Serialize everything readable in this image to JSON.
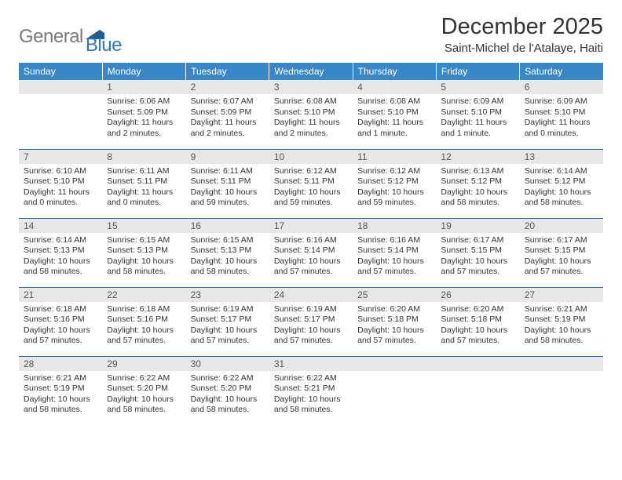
{
  "brand": {
    "part1": "General",
    "part2": "Blue"
  },
  "title": "December 2025",
  "location": "Saint-Michel de l'Atalaye, Haiti",
  "colors": {
    "header_bg": "#3a87c7",
    "header_text": "#ffffff",
    "daynum_bg": "#e7e7e7",
    "border": "#2f6fa6",
    "logo_gray": "#7a7a7a",
    "logo_blue": "#2f78b5"
  },
  "weekdays": [
    "Sunday",
    "Monday",
    "Tuesday",
    "Wednesday",
    "Thursday",
    "Friday",
    "Saturday"
  ],
  "weeks": [
    [
      null,
      {
        "n": "1",
        "sr": "Sunrise: 6:06 AM",
        "ss": "Sunset: 5:09 PM",
        "dl": "Daylight: 11 hours and 2 minutes."
      },
      {
        "n": "2",
        "sr": "Sunrise: 6:07 AM",
        "ss": "Sunset: 5:09 PM",
        "dl": "Daylight: 11 hours and 2 minutes."
      },
      {
        "n": "3",
        "sr": "Sunrise: 6:08 AM",
        "ss": "Sunset: 5:10 PM",
        "dl": "Daylight: 11 hours and 2 minutes."
      },
      {
        "n": "4",
        "sr": "Sunrise: 6:08 AM",
        "ss": "Sunset: 5:10 PM",
        "dl": "Daylight: 11 hours and 1 minute."
      },
      {
        "n": "5",
        "sr": "Sunrise: 6:09 AM",
        "ss": "Sunset: 5:10 PM",
        "dl": "Daylight: 11 hours and 1 minute."
      },
      {
        "n": "6",
        "sr": "Sunrise: 6:09 AM",
        "ss": "Sunset: 5:10 PM",
        "dl": "Daylight: 11 hours and 0 minutes."
      }
    ],
    [
      {
        "n": "7",
        "sr": "Sunrise: 6:10 AM",
        "ss": "Sunset: 5:10 PM",
        "dl": "Daylight: 11 hours and 0 minutes."
      },
      {
        "n": "8",
        "sr": "Sunrise: 6:11 AM",
        "ss": "Sunset: 5:11 PM",
        "dl": "Daylight: 11 hours and 0 minutes."
      },
      {
        "n": "9",
        "sr": "Sunrise: 6:11 AM",
        "ss": "Sunset: 5:11 PM",
        "dl": "Daylight: 10 hours and 59 minutes."
      },
      {
        "n": "10",
        "sr": "Sunrise: 6:12 AM",
        "ss": "Sunset: 5:11 PM",
        "dl": "Daylight: 10 hours and 59 minutes."
      },
      {
        "n": "11",
        "sr": "Sunrise: 6:12 AM",
        "ss": "Sunset: 5:12 PM",
        "dl": "Daylight: 10 hours and 59 minutes."
      },
      {
        "n": "12",
        "sr": "Sunrise: 6:13 AM",
        "ss": "Sunset: 5:12 PM",
        "dl": "Daylight: 10 hours and 58 minutes."
      },
      {
        "n": "13",
        "sr": "Sunrise: 6:14 AM",
        "ss": "Sunset: 5:12 PM",
        "dl": "Daylight: 10 hours and 58 minutes."
      }
    ],
    [
      {
        "n": "14",
        "sr": "Sunrise: 6:14 AM",
        "ss": "Sunset: 5:13 PM",
        "dl": "Daylight: 10 hours and 58 minutes."
      },
      {
        "n": "15",
        "sr": "Sunrise: 6:15 AM",
        "ss": "Sunset: 5:13 PM",
        "dl": "Daylight: 10 hours and 58 minutes."
      },
      {
        "n": "16",
        "sr": "Sunrise: 6:15 AM",
        "ss": "Sunset: 5:13 PM",
        "dl": "Daylight: 10 hours and 58 minutes."
      },
      {
        "n": "17",
        "sr": "Sunrise: 6:16 AM",
        "ss": "Sunset: 5:14 PM",
        "dl": "Daylight: 10 hours and 57 minutes."
      },
      {
        "n": "18",
        "sr": "Sunrise: 6:16 AM",
        "ss": "Sunset: 5:14 PM",
        "dl": "Daylight: 10 hours and 57 minutes."
      },
      {
        "n": "19",
        "sr": "Sunrise: 6:17 AM",
        "ss": "Sunset: 5:15 PM",
        "dl": "Daylight: 10 hours and 57 minutes."
      },
      {
        "n": "20",
        "sr": "Sunrise: 6:17 AM",
        "ss": "Sunset: 5:15 PM",
        "dl": "Daylight: 10 hours and 57 minutes."
      }
    ],
    [
      {
        "n": "21",
        "sr": "Sunrise: 6:18 AM",
        "ss": "Sunset: 5:16 PM",
        "dl": "Daylight: 10 hours and 57 minutes."
      },
      {
        "n": "22",
        "sr": "Sunrise: 6:18 AM",
        "ss": "Sunset: 5:16 PM",
        "dl": "Daylight: 10 hours and 57 minutes."
      },
      {
        "n": "23",
        "sr": "Sunrise: 6:19 AM",
        "ss": "Sunset: 5:17 PM",
        "dl": "Daylight: 10 hours and 57 minutes."
      },
      {
        "n": "24",
        "sr": "Sunrise: 6:19 AM",
        "ss": "Sunset: 5:17 PM",
        "dl": "Daylight: 10 hours and 57 minutes."
      },
      {
        "n": "25",
        "sr": "Sunrise: 6:20 AM",
        "ss": "Sunset: 5:18 PM",
        "dl": "Daylight: 10 hours and 57 minutes."
      },
      {
        "n": "26",
        "sr": "Sunrise: 6:20 AM",
        "ss": "Sunset: 5:18 PM",
        "dl": "Daylight: 10 hours and 57 minutes."
      },
      {
        "n": "27",
        "sr": "Sunrise: 6:21 AM",
        "ss": "Sunset: 5:19 PM",
        "dl": "Daylight: 10 hours and 58 minutes."
      }
    ],
    [
      {
        "n": "28",
        "sr": "Sunrise: 6:21 AM",
        "ss": "Sunset: 5:19 PM",
        "dl": "Daylight: 10 hours and 58 minutes."
      },
      {
        "n": "29",
        "sr": "Sunrise: 6:22 AM",
        "ss": "Sunset: 5:20 PM",
        "dl": "Daylight: 10 hours and 58 minutes."
      },
      {
        "n": "30",
        "sr": "Sunrise: 6:22 AM",
        "ss": "Sunset: 5:20 PM",
        "dl": "Daylight: 10 hours and 58 minutes."
      },
      {
        "n": "31",
        "sr": "Sunrise: 6:22 AM",
        "ss": "Sunset: 5:21 PM",
        "dl": "Daylight: 10 hours and 58 minutes."
      },
      null,
      null,
      null
    ]
  ]
}
